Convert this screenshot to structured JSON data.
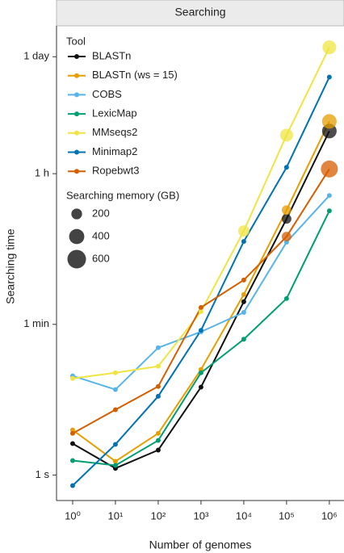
{
  "chart_data": {
    "type": "line",
    "panel_title": "Searching",
    "x_label": "Number of genomes",
    "y_label": "Searching time",
    "x_log": true,
    "y_log": true,
    "x": [
      1,
      10,
      100,
      1000,
      10000,
      100000,
      1000000
    ],
    "xlim": [
      0.42,
      2200000
    ],
    "ylim": [
      0.5,
      200000
    ],
    "xticks": [
      {
        "value": 1,
        "label": "10⁰"
      },
      {
        "value": 10,
        "label": "10¹"
      },
      {
        "value": 100,
        "label": "10²"
      },
      {
        "value": 1000,
        "label": "10³"
      },
      {
        "value": 10000,
        "label": "10⁴"
      },
      {
        "value": 100000,
        "label": "10⁵"
      },
      {
        "value": 1000000,
        "label": "10⁶"
      }
    ],
    "yticks": [
      {
        "value": 1,
        "label": "1 s"
      },
      {
        "value": 60,
        "label": "1 min"
      },
      {
        "value": 3600,
        "label": "1 h"
      },
      {
        "value": 86400,
        "label": "1 day"
      }
    ],
    "legend_title": "Tool",
    "size_legend": {
      "title": "Searching memory (GB)",
      "values": [
        200,
        400,
        600
      ]
    },
    "series": [
      {
        "name": "BLASTn",
        "color": "#111111",
        "values": [
          2.35,
          1.2,
          1.97,
          10.9,
          111,
          1054,
          11460
        ],
        "sizes": [
          40,
          40,
          40,
          40,
          40,
          160,
          370
        ]
      },
      {
        "name": "BLASTn (ws = 15)",
        "color": "#E69F00",
        "values": [
          3.4,
          1.45,
          3.1,
          17.6,
          135,
          1341,
          14900
        ],
        "sizes": [
          40,
          40,
          40,
          40,
          40,
          160,
          370
        ]
      },
      {
        "name": "COBS",
        "color": "#56B4E9",
        "values": [
          14.8,
          10.2,
          31.8,
          49,
          83,
          559,
          1988
        ],
        "sizes": [
          40,
          40,
          40,
          40,
          40,
          40,
          40
        ]
      },
      {
        "name": "LexicMap",
        "color": "#009E73",
        "values": [
          1.48,
          1.3,
          2.56,
          16.1,
          40,
          121,
          1312
        ],
        "sizes": [
          40,
          40,
          40,
          40,
          40,
          40,
          40
        ]
      },
      {
        "name": "MMseqs2",
        "color": "#F0E442",
        "values": [
          13.8,
          16.1,
          19.2,
          85,
          759,
          10260,
          111600
        ],
        "sizes": [
          40,
          40,
          40,
          40,
          220,
          290,
          330
        ]
      },
      {
        "name": "Minimap2",
        "color": "#0072B2",
        "values": [
          0.75,
          2.3,
          8.5,
          51,
          571,
          4280,
          49700
        ],
        "sizes": [
          40,
          40,
          40,
          40,
          40,
          40,
          40
        ]
      },
      {
        "name": "Ropebwt3",
        "color": "#D55E00",
        "values": [
          3.1,
          5.9,
          11.1,
          95,
          200,
          651,
          4090
        ],
        "sizes": [
          40,
          40,
          40,
          40,
          40,
          160,
          500
        ]
      }
    ]
  }
}
